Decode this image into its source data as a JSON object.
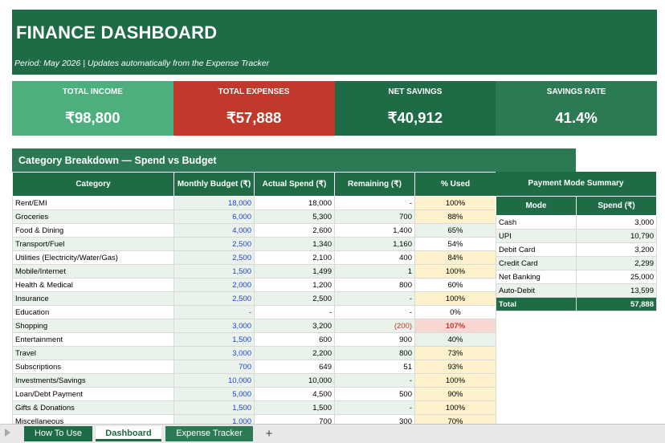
{
  "header": {
    "title": "FINANCE DASHBOARD",
    "period": "Period: May 2026   |   Updates automatically from the Expense Tracker"
  },
  "kpis": [
    {
      "label": "TOTAL INCOME",
      "value": "₹98,800",
      "color": "#4caf7d"
    },
    {
      "label": "TOTAL EXPENSES",
      "value": "₹57,888",
      "color": "#c0392b"
    },
    {
      "label": "NET SAVINGS",
      "value": "₹40,912",
      "color": "#1e6b45"
    },
    {
      "label": "SAVINGS RATE",
      "value": "41.4%",
      "color": "#2c7a53"
    }
  ],
  "category_section": {
    "title": "Category Breakdown — Spend vs Budget",
    "headers": [
      "Category",
      "Monthly Budget (₹)",
      "Actual Spend (₹)",
      "Remaining (₹)",
      "% Used"
    ],
    "rows": [
      {
        "category": "Rent/EMI",
        "budget": "18,000",
        "actual": "18,000",
        "remaining": "-",
        "pct": "100%",
        "status": "full"
      },
      {
        "category": "Groceries",
        "budget": "6,000",
        "actual": "5,300",
        "remaining": "700",
        "pct": "88%",
        "status": "high"
      },
      {
        "category": "Food & Dining",
        "budget": "4,000",
        "actual": "2,600",
        "remaining": "1,400",
        "pct": "65%",
        "status": "mid"
      },
      {
        "category": "Transport/Fuel",
        "budget": "2,500",
        "actual": "1,340",
        "remaining": "1,160",
        "pct": "54%",
        "status": "low"
      },
      {
        "category": "Utilities (Electricity/Water/Gas)",
        "budget": "2,500",
        "actual": "2,100",
        "remaining": "400",
        "pct": "84%",
        "status": "high"
      },
      {
        "category": "Mobile/Internet",
        "budget": "1,500",
        "actual": "1,499",
        "remaining": "1",
        "pct": "100%",
        "status": "full"
      },
      {
        "category": "Health & Medical",
        "budget": "2,000",
        "actual": "1,200",
        "remaining": "800",
        "pct": "60%",
        "status": "low"
      },
      {
        "category": "Insurance",
        "budget": "2,500",
        "actual": "2,500",
        "remaining": "-",
        "pct": "100%",
        "status": "full"
      },
      {
        "category": "Education",
        "budget": "-",
        "actual": "-",
        "remaining": "-",
        "pct": "0%",
        "status": "low"
      },
      {
        "category": "Shopping",
        "budget": "3,000",
        "actual": "3,200",
        "remaining": "(200)",
        "pct": "107%",
        "status": "over"
      },
      {
        "category": "Entertainment",
        "budget": "1,500",
        "actual": "600",
        "remaining": "900",
        "pct": "40%",
        "status": "mid"
      },
      {
        "category": "Travel",
        "budget": "3,000",
        "actual": "2,200",
        "remaining": "800",
        "pct": "73%",
        "status": "high"
      },
      {
        "category": "Subscriptions",
        "budget": "700",
        "actual": "649",
        "remaining": "51",
        "pct": "93%",
        "status": "high"
      },
      {
        "category": "Investments/Savings",
        "budget": "10,000",
        "actual": "10,000",
        "remaining": "-",
        "pct": "100%",
        "status": "full"
      },
      {
        "category": "Loan/Debt Payment",
        "budget": "5,000",
        "actual": "4,500",
        "remaining": "500",
        "pct": "90%",
        "status": "high"
      },
      {
        "category": "Gifts & Donations",
        "budget": "1,500",
        "actual": "1,500",
        "remaining": "-",
        "pct": "100%",
        "status": "full"
      },
      {
        "category": "Miscellaneous",
        "budget": "1,000",
        "actual": "700",
        "remaining": "300",
        "pct": "70%",
        "status": "high"
      }
    ]
  },
  "payment_section": {
    "title": "Payment Mode Summary",
    "headers": [
      "Mode",
      "Spend (₹)"
    ],
    "rows": [
      {
        "mode": "Cash",
        "spend": "3,000"
      },
      {
        "mode": "UPI",
        "spend": "10,790"
      },
      {
        "mode": "Debit Card",
        "spend": "3,200"
      },
      {
        "mode": "Credit Card",
        "spend": "2,299"
      },
      {
        "mode": "Net Banking",
        "spend": "25,000"
      },
      {
        "mode": "Auto-Debit",
        "spend": "13,599"
      }
    ],
    "total_label": "Total",
    "total_value": "57,888"
  },
  "tabs": {
    "how_to": "How To Use",
    "dashboard": "Dashboard",
    "expense_tracker": "Expense Tracker",
    "add": "+"
  }
}
